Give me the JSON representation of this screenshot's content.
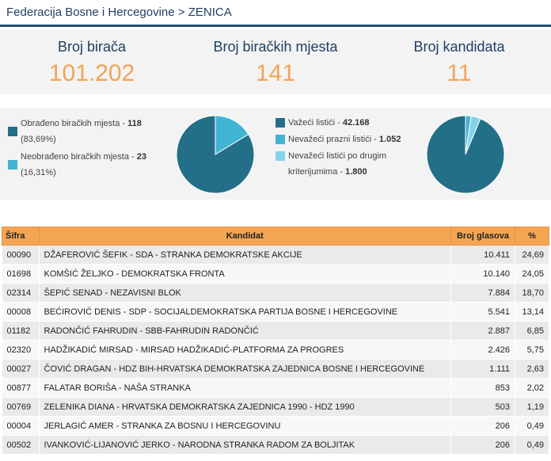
{
  "breadcrumb": "Federacija Bosne i Hercegovine > ZENICA",
  "stats": [
    {
      "label": "Broj birača",
      "value": "101.202"
    },
    {
      "label": "Broj biračkih mjesta",
      "value": "141"
    },
    {
      "label": "Broj kandidata",
      "value": "11"
    }
  ],
  "colors": {
    "primary": "#236f88",
    "secondary": "#42b4d3",
    "tertiary": "#86d3e8",
    "accent": "#f0a456",
    "header": "#f4a553"
  },
  "polling": {
    "items": [
      {
        "text": "Obrađeno biračkih mjesta - ",
        "bold": "118",
        "sub": "(83,69%)",
        "color": "#236f88"
      },
      {
        "text": "Neobrađeno biračkih mjesta - ",
        "bold": "23",
        "sub": "(16,31%)",
        "color": "#42b4d3"
      }
    ],
    "pie": [
      118,
      23
    ]
  },
  "ballots": {
    "items": [
      {
        "text": "Važeći listići - ",
        "bold": "42.168",
        "color": "#236f88"
      },
      {
        "text": "Nevažeći prazni listići - ",
        "bold": "1.052",
        "color": "#42b4d3"
      },
      {
        "text": "Nevažeći listići po drugim",
        "text2": "kriterijumima - ",
        "bold": "1.800",
        "color": "#86d3e8"
      }
    ],
    "pie": [
      42168,
      1052,
      1800
    ]
  },
  "table": {
    "headers": [
      "Šifra",
      "Kandidat",
      "Broj glasova",
      "%"
    ],
    "rows": [
      {
        "code": "00090",
        "name": "DŽAFEROVIĆ ŠEFIK - SDA - STRANKA DEMOKRATSKE AKCIJE",
        "votes": "10.411",
        "pct": "24,69"
      },
      {
        "code": "01698",
        "name": "KOMŠIĆ ŽELJKO - DEMOKRATSKA FRONTA",
        "votes": "10.140",
        "pct": "24,05"
      },
      {
        "code": "02314",
        "name": "ŠEPIĆ SENAD - NEZAVISNI BLOK",
        "votes": "7.884",
        "pct": "18,70"
      },
      {
        "code": "00008",
        "name": "BEĆIROVIĆ DENIS - SDP - SOCIJALDEMOKRATSKA PARTIJA BOSNE I HERCEGOVINE",
        "votes": "5.541",
        "pct": "13,14"
      },
      {
        "code": "01182",
        "name": "RADONČIĆ FAHRUDIN - SBB-FAHRUDIN RADONČIĆ",
        "votes": "2.887",
        "pct": "6,85"
      },
      {
        "code": "02320",
        "name": "HADŽIKADIĆ MIRSAD - MIRSAD HADŽIKADIĆ-PLATFORMA ZA PROGRES",
        "votes": "2.426",
        "pct": "5,75"
      },
      {
        "code": "00027",
        "name": "ČOVIĆ DRAGAN - HDZ BIH-HRVATSKA DEMOKRATSKA ZAJEDNICA BOSNE I HERCEGOVINE",
        "votes": "1.111",
        "pct": "2,63"
      },
      {
        "code": "00877",
        "name": "FALATAR BORIŠA - NAŠA STRANKA",
        "votes": "853",
        "pct": "2,02"
      },
      {
        "code": "00769",
        "name": "ZELENIKA DIANA - HRVATSKA DEMOKRATSKA ZAJEDNICA 1990 - HDZ 1990",
        "votes": "503",
        "pct": "1,19"
      },
      {
        "code": "00004",
        "name": "JERLAGIĆ AMER - STRANKA ZA BOSNU I HERCEGOVINU",
        "votes": "206",
        "pct": "0,49"
      },
      {
        "code": "00502",
        "name": "IVANKOVIĆ-LIJANOVIĆ JERKO - NARODNA STRANKA RADOM ZA BOLJITAK",
        "votes": "206",
        "pct": "0,49"
      }
    ]
  }
}
